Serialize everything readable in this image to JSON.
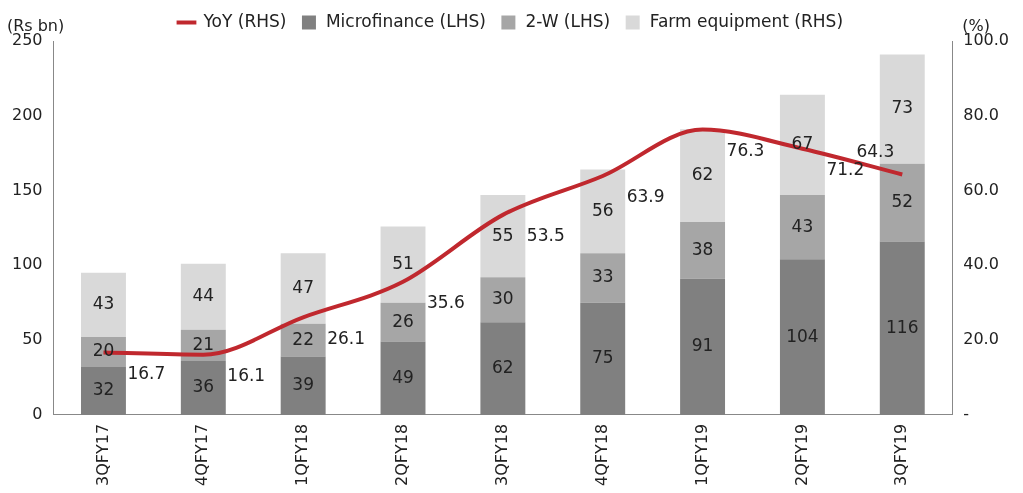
{
  "chart_data": {
    "type": "bar",
    "stacked": true,
    "categories": [
      "3QFY17",
      "4QFY17",
      "1QFY18",
      "2QFY18",
      "3QFY18",
      "4QFY18",
      "1QFY19",
      "2QFY19",
      "3QFY19"
    ],
    "series": [
      {
        "name": "Microfinance (LHS)",
        "color": "#808080",
        "values": [
          32,
          36,
          39,
          49,
          62,
          75,
          91,
          104,
          116
        ]
      },
      {
        "name": "2-W (LHS)",
        "color": "#a6a6a6",
        "values": [
          20,
          21,
          22,
          26,
          30,
          33,
          38,
          43,
          52
        ]
      },
      {
        "name": "Farm equipment (RHS)",
        "color": "#d9d9d9",
        "values": [
          43,
          44,
          47,
          51,
          55,
          56,
          62,
          67,
          73
        ]
      },
      {
        "name": "YoY (RHS)",
        "color": "#c0282e",
        "type": "line",
        "axis": "y2",
        "values": [
          16.7,
          16.1,
          26.1,
          35.6,
          53.5,
          63.9,
          76.3,
          71.2,
          64.3
        ]
      }
    ],
    "ylabel": "(Rs bn)",
    "y2label": "(%)",
    "ylim": [
      0,
      250
    ],
    "yticks": [
      0,
      50,
      100,
      150,
      200,
      250
    ],
    "y2lim": [
      0,
      100
    ],
    "y2ticks": [
      {
        "value": 0,
        "label": "-"
      },
      {
        "value": 20,
        "label": "20.0"
      },
      {
        "value": 40,
        "label": "40.0"
      },
      {
        "value": 60,
        "label": "60.0"
      },
      {
        "value": 80,
        "label": "80.0"
      },
      {
        "value": 100,
        "label": "100.0"
      }
    ],
    "grid": false,
    "legend": "top",
    "data_labels": true,
    "marker": "none"
  }
}
